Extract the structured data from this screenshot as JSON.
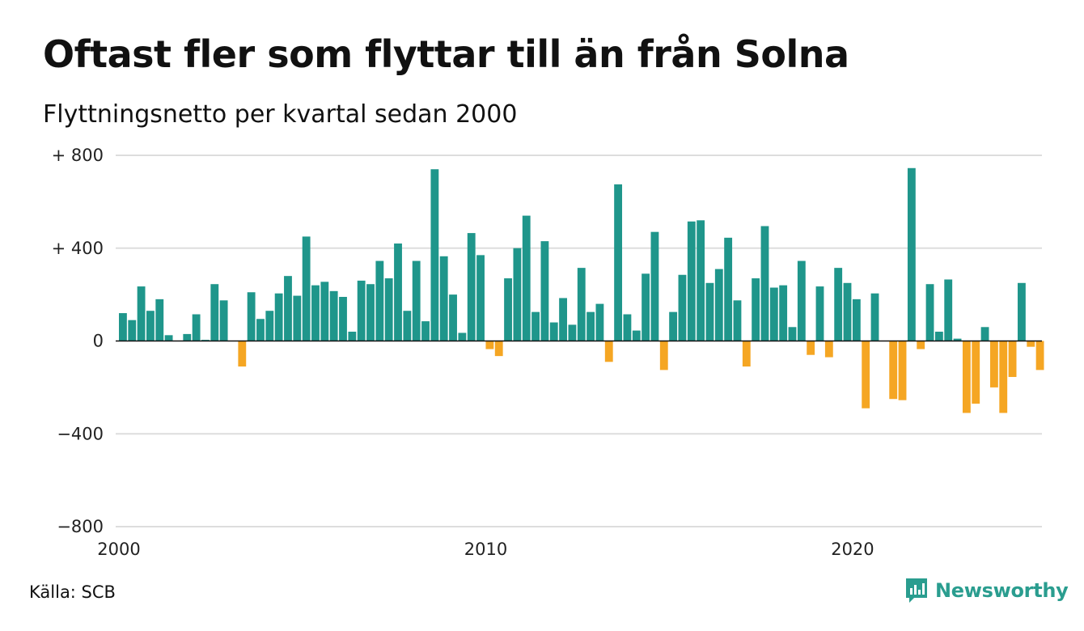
{
  "title": "Oftast fler som flyttar till än från Solna",
  "subtitle": "Flyttningsnetto per kvartal sedan 2000",
  "source": "Källa: SCB",
  "brand": "Newsworthy",
  "colors": {
    "positive": "#1f968b",
    "negative": "#f5a623",
    "grid": "#dddddd",
    "brand": "#2a9d8f"
  },
  "chart_data": {
    "type": "bar",
    "title": "Oftast fler som flyttar till än från Solna",
    "subtitle": "Flyttningsnetto per kvartal sedan 2000",
    "xlabel": "",
    "ylabel": "",
    "ylim": [
      -800,
      800
    ],
    "yticks": [
      800,
      400,
      0,
      -400,
      -800
    ],
    "ytick_labels": [
      "+ 800",
      "+ 400",
      "0",
      "−400",
      "−800"
    ],
    "xtick_labels": [
      "2000",
      "2010",
      "2020"
    ],
    "grid": true,
    "start": "2000 Q1",
    "values": [
      120,
      90,
      235,
      130,
      180,
      25,
      0,
      30,
      115,
      5,
      245,
      175,
      0,
      -110,
      210,
      95,
      130,
      205,
      280,
      195,
      450,
      240,
      255,
      215,
      190,
      40,
      260,
      245,
      345,
      270,
      420,
      130,
      345,
      85,
      740,
      365,
      200,
      35,
      465,
      370,
      -35,
      -65,
      270,
      400,
      540,
      125,
      430,
      80,
      185,
      70,
      315,
      125,
      160,
      -90,
      675,
      115,
      45,
      290,
      470,
      -125,
      125,
      285,
      515,
      520,
      250,
      310,
      445,
      175,
      -110,
      270,
      495,
      230,
      240,
      60,
      345,
      -60,
      235,
      -70,
      315,
      250,
      180,
      -290,
      205,
      0,
      -250,
      -255,
      745,
      -35,
      245,
      40,
      265,
      10,
      -310,
      -270,
      60,
      -200,
      -310,
      -155,
      250,
      -25,
      -125
    ]
  }
}
